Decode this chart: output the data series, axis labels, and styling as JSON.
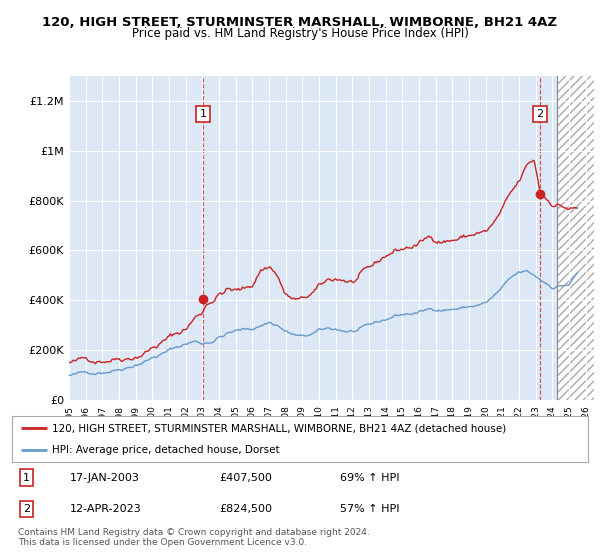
{
  "title1": "120, HIGH STREET, STURMINSTER MARSHALL, WIMBORNE, BH21 4AZ",
  "title2": "Price paid vs. HM Land Registry's House Price Index (HPI)",
  "ytick_values": [
    0,
    200000,
    400000,
    600000,
    800000,
    1000000,
    1200000
  ],
  "ylim": [
    0,
    1300000
  ],
  "xlim_start": 1995.0,
  "xlim_end": 2026.5,
  "red_color": "#cc2222",
  "blue_color": "#6699cc",
  "bg_chart": "#dce8f5",
  "bg_hatch": "#ffffff",
  "bg_fig": "#ffffff",
  "grid_color": "#ffffff",
  "hatch_start": 2024.3,
  "ann1_x": 2003.05,
  "ann1_y": 407500,
  "ann2_x": 2023.27,
  "ann2_y": 824500,
  "legend_red": "120, HIGH STREET, STURMINSTER MARSHALL, WIMBORNE, BH21 4AZ (detached house)",
  "legend_blue": "HPI: Average price, detached house, Dorset",
  "footnote": "Contains HM Land Registry data © Crown copyright and database right 2024.\nThis data is licensed under the Open Government Licence v3.0."
}
